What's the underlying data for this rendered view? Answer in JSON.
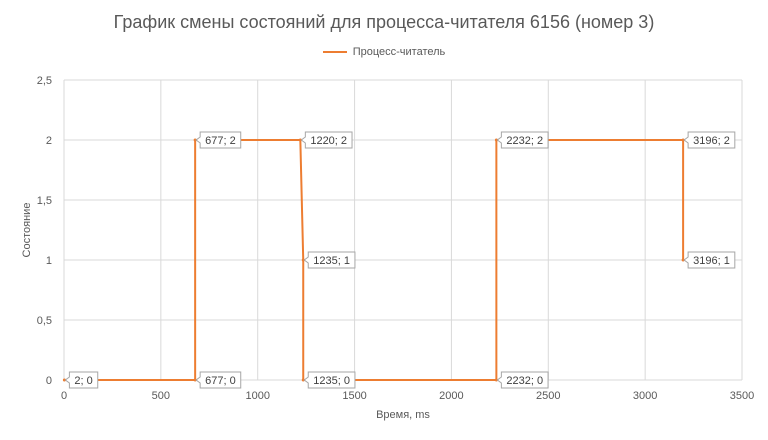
{
  "chart_data": {
    "type": "line",
    "step": true,
    "title": "График смены состояний для процесса-читателя 6156 (номер 3)",
    "xlabel": "Время,  ms",
    "ylabel": "Состояние",
    "xlim": [
      0,
      3500
    ],
    "ylim": [
      0,
      2.5
    ],
    "x_ticks": [
      "0",
      "500",
      "1000",
      "1500",
      "2000",
      "2500",
      "3000",
      "3500"
    ],
    "y_ticks": [
      "0",
      "0,5",
      "1",
      "1,5",
      "2",
      "2,5"
    ],
    "grid": true,
    "legend_position": "top",
    "series": [
      {
        "name": "Процесс-читатель",
        "color": "#ED7D31",
        "points": [
          {
            "x": 2,
            "y": 0,
            "label": "2; 0"
          },
          {
            "x": 677,
            "y": 0,
            "label": "677; 0"
          },
          {
            "x": 677,
            "y": 2,
            "label": "677; 2"
          },
          {
            "x": 1220,
            "y": 2,
            "label": "1220; 2"
          },
          {
            "x": 1235,
            "y": 1,
            "label": "1235; 1"
          },
          {
            "x": 1235,
            "y": 0,
            "label": "1235; 0"
          },
          {
            "x": 2232,
            "y": 0,
            "label": "2232; 0"
          },
          {
            "x": 2232,
            "y": 2,
            "label": "2232; 2"
          },
          {
            "x": 3196,
            "y": 2,
            "label": "3196; 2"
          },
          {
            "x": 3196,
            "y": 1,
            "label": "3196; 1"
          }
        ]
      }
    ]
  }
}
